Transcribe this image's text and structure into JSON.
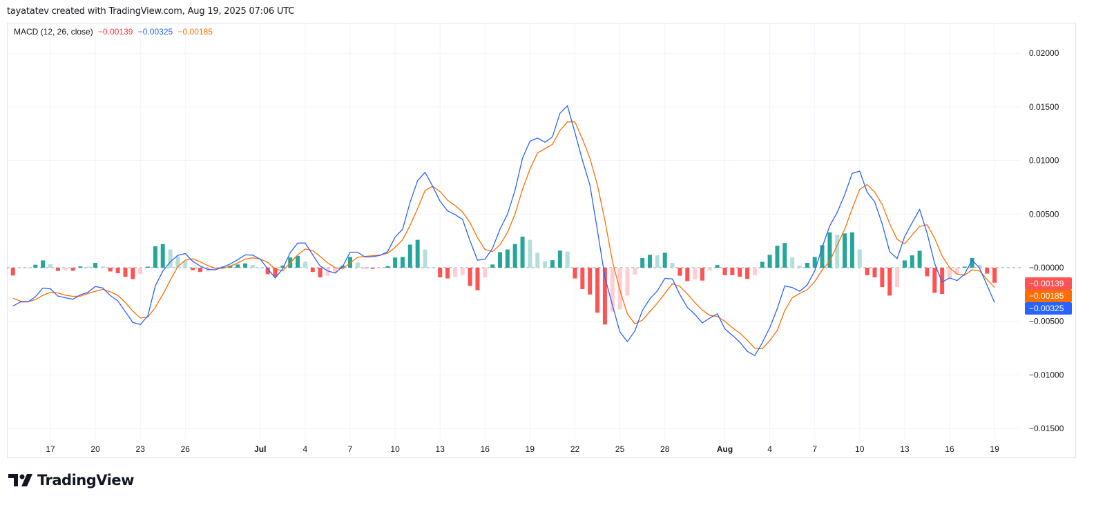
{
  "header": {
    "attribution": "tayatatev created with TradingView.com, Aug 19, 2025 07:06 UTC"
  },
  "legend": {
    "indicator": "MACD (12, 26, close)",
    "histogram_value": "−0.00139",
    "macd_value": "−0.00325",
    "signal_value": "−0.00185"
  },
  "colors": {
    "macd": "#2962FF",
    "signal": "#FF6D00",
    "histogram_value_text": "#F23645",
    "hist_pos_rising": "#26A69A",
    "hist_pos_falling": "#B2DFDB",
    "hist_neg_falling": "#FF5252",
    "hist_neg_rising": "#FFCDD2",
    "grid": "#F0F3FA",
    "border": "#E0E3EB"
  },
  "price_axis_badges": [
    {
      "label": "−0.00139",
      "value": -0.00139,
      "color": "#FF5252",
      "series": "histogram"
    },
    {
      "label": "−0.00185",
      "value": -0.00185,
      "color": "#FF6D00",
      "series": "signal"
    },
    {
      "label": "−0.00325",
      "value": -0.00325,
      "color": "#2962FF",
      "series": "macd"
    }
  ],
  "zero_label": "−0.00000",
  "logo": {
    "text": "TradingView"
  },
  "chart_data": {
    "type": "line",
    "title": "",
    "ylim": [
      -0.0165,
      0.0225
    ],
    "grid": true,
    "yticks": [
      {
        "label": "0.02000",
        "value": 0.02
      },
      {
        "label": "0.01500",
        "value": 0.015
      },
      {
        "label": "0.01000",
        "value": 0.01
      },
      {
        "label": "0.00500",
        "value": 0.005
      },
      {
        "label": "−0.00500",
        "value": -0.005
      },
      {
        "label": "−0.01000",
        "value": -0.01
      },
      {
        "label": "−0.01500",
        "value": -0.015
      }
    ],
    "xticks": [
      {
        "label": "17",
        "date": "Jun 17 00:00"
      },
      {
        "label": "20",
        "date": "Jun 20 00:00"
      },
      {
        "label": "23",
        "date": "Jun 23 00:00"
      },
      {
        "label": "26",
        "date": "Jun 26 00:00"
      },
      {
        "label": "Jul",
        "date": "Jul 1 00:00",
        "bold": true
      },
      {
        "label": "4",
        "date": "Jul 4 00:00"
      },
      {
        "label": "7",
        "date": "Jul 7 00:00"
      },
      {
        "label": "10",
        "date": "Jul 10 00:00"
      },
      {
        "label": "13",
        "date": "Jul 13 00:00"
      },
      {
        "label": "16",
        "date": "Jul 16 00:00"
      },
      {
        "label": "19",
        "date": "Jul 19 00:00"
      },
      {
        "label": "22",
        "date": "Jul 22 00:00"
      },
      {
        "label": "25",
        "date": "Jul 25 00:00"
      },
      {
        "label": "28",
        "date": "Jul 28 00:00"
      },
      {
        "label": "Aug",
        "date": "Aug 1 00:00",
        "bold": true
      },
      {
        "label": "4",
        "date": "Aug 4 00:00"
      },
      {
        "label": "7",
        "date": "Aug 7 00:00"
      },
      {
        "label": "10",
        "date": "Aug 10 00:00"
      },
      {
        "label": "13",
        "date": "Aug 13 00:00"
      },
      {
        "label": "16",
        "date": "Aug 16 00:00"
      },
      {
        "label": "19",
        "date": "Aug 19 00:00"
      }
    ],
    "x": [
      "Jun 14 12:00",
      "Jun 15 00:00",
      "Jun 15 12:00",
      "Jun 16 00:00",
      "Jun 16 12:00",
      "Jun 17 00:00",
      "Jun 17 12:00",
      "Jun 18 00:00",
      "Jun 18 12:00",
      "Jun 19 00:00",
      "Jun 19 12:00",
      "Jun 20 00:00",
      "Jun 20 12:00",
      "Jun 21 00:00",
      "Jun 21 12:00",
      "Jun 22 00:00",
      "Jun 22 12:00",
      "Jun 23 00:00",
      "Jun 23 12:00",
      "Jun 24 00:00",
      "Jun 24 12:00",
      "Jun 25 00:00",
      "Jun 25 12:00",
      "Jun 26 00:00",
      "Jun 26 12:00",
      "Jun 27 00:00",
      "Jun 27 12:00",
      "Jun 28 00:00",
      "Jun 28 12:00",
      "Jun 29 00:00",
      "Jun 29 12:00",
      "Jun 30 00:00",
      "Jun 30 12:00",
      "Jul 1 00:00",
      "Jul 1 12:00",
      "Jul 2 00:00",
      "Jul 2 12:00",
      "Jul 3 00:00",
      "Jul 3 12:00",
      "Jul 4 00:00",
      "Jul 4 12:00",
      "Jul 5 00:00",
      "Jul 5 12:00",
      "Jul 6 00:00",
      "Jul 6 12:00",
      "Jul 7 00:00",
      "Jul 7 12:00",
      "Jul 8 00:00",
      "Jul 8 12:00",
      "Jul 9 00:00",
      "Jul 9 12:00",
      "Jul 10 00:00",
      "Jul 10 12:00",
      "Jul 11 00:00",
      "Jul 11 12:00",
      "Jul 12 00:00",
      "Jul 12 12:00",
      "Jul 13 00:00",
      "Jul 13 12:00",
      "Jul 14 00:00",
      "Jul 14 12:00",
      "Jul 15 00:00",
      "Jul 15 12:00",
      "Jul 16 00:00",
      "Jul 16 12:00",
      "Jul 17 00:00",
      "Jul 17 12:00",
      "Jul 18 00:00",
      "Jul 18 12:00",
      "Jul 19 00:00",
      "Jul 19 12:00",
      "Jul 20 00:00",
      "Jul 20 12:00",
      "Jul 21 00:00",
      "Jul 21 12:00",
      "Jul 22 00:00",
      "Jul 22 12:00",
      "Jul 23 00:00",
      "Jul 23 12:00",
      "Jul 24 00:00",
      "Jul 24 12:00",
      "Jul 25 00:00",
      "Jul 25 12:00",
      "Jul 26 00:00",
      "Jul 26 12:00",
      "Jul 27 00:00",
      "Jul 27 12:00",
      "Jul 28 00:00",
      "Jul 28 12:00",
      "Jul 29 00:00",
      "Jul 29 12:00",
      "Jul 30 00:00",
      "Jul 30 12:00",
      "Jul 31 00:00",
      "Jul 31 12:00",
      "Aug 1 00:00",
      "Aug 1 12:00",
      "Aug 2 00:00",
      "Aug 2 12:00",
      "Aug 3 00:00",
      "Aug 3 12:00",
      "Aug 4 00:00",
      "Aug 4 12:00",
      "Aug 5 00:00",
      "Aug 5 12:00",
      "Aug 6 00:00",
      "Aug 6 12:00",
      "Aug 7 00:00",
      "Aug 7 12:00",
      "Aug 8 00:00",
      "Aug 8 12:00",
      "Aug 9 00:00",
      "Aug 9 12:00",
      "Aug 10 00:00",
      "Aug 10 12:00",
      "Aug 11 00:00",
      "Aug 11 12:00",
      "Aug 12 00:00",
      "Aug 12 12:00",
      "Aug 13 00:00",
      "Aug 13 12:00",
      "Aug 14 00:00",
      "Aug 14 12:00",
      "Aug 15 00:00",
      "Aug 15 12:00",
      "Aug 16 00:00",
      "Aug 16 12:00",
      "Aug 17 00:00",
      "Aug 17 12:00",
      "Aug 18 00:00",
      "Aug 18 12:00",
      "Aug 19 00:00"
    ],
    "series": [
      {
        "name": "MACD",
        "key": "macd",
        "values": [
          -0.00358,
          -0.00319,
          -0.00319,
          -0.0027,
          -0.0019,
          -0.00197,
          -0.00265,
          -0.0028,
          -0.00295,
          -0.00253,
          -0.0023,
          -0.00175,
          -0.0019,
          -0.0026,
          -0.0031,
          -0.0041,
          -0.0051,
          -0.0053,
          -0.0045,
          -0.0017,
          -0.0003,
          0.00055,
          0.00115,
          0.00132,
          0.0006,
          0.00015,
          -0.00015,
          -0.0002,
          5e-05,
          0.00035,
          0.00075,
          0.0012,
          0.00117,
          0.0008,
          -0.0001,
          -0.00095,
          -0.0001,
          0.0014,
          0.0023,
          0.0023,
          0.0012,
          0.00015,
          -0.0003,
          -0.0005,
          0.0001,
          0.00145,
          0.00145,
          0.001,
          0.00102,
          0.00115,
          0.0015,
          0.00285,
          0.0036,
          0.0061,
          0.0081,
          0.0089,
          0.0076,
          0.0062,
          0.0053,
          0.00495,
          0.0045,
          0.0025,
          0.0007,
          0.0008,
          0.0018,
          0.0036,
          0.005,
          0.0072,
          0.0102,
          0.0118,
          0.0121,
          0.0117,
          0.0122,
          0.0144,
          0.0151,
          0.0126,
          0.01,
          0.0077,
          0.0035,
          -0.0009,
          -0.0035,
          -0.006,
          -0.0069,
          -0.0059,
          -0.004,
          -0.0029,
          -0.00215,
          -0.001,
          -0.00105,
          -0.0025,
          -0.0037,
          -0.00435,
          -0.00515,
          -0.0047,
          -0.0043,
          -0.0057,
          -0.0063,
          -0.00695,
          -0.0078,
          -0.0082,
          -0.007,
          -0.0056,
          -0.0038,
          -0.0017,
          -0.00185,
          -0.0022,
          -0.0016,
          -0.0003,
          0.0019,
          0.0039,
          0.00517,
          0.0068,
          0.0088,
          0.009,
          0.00705,
          0.00615,
          0.0041,
          0.0015,
          0.00085,
          0.0029,
          0.0042,
          0.00543,
          0.0032,
          0.0004,
          -0.00135,
          -0.00095,
          -0.0012,
          -0.0006,
          0.00071,
          -4e-05,
          -0.00165,
          -0.00325
        ]
      },
      {
        "name": "Signal",
        "key": "signal",
        "values": [
          -0.00285,
          -0.00312,
          -0.00317,
          -0.00298,
          -0.00258,
          -0.0023,
          -0.00235,
          -0.00257,
          -0.00267,
          -0.00265,
          -0.0024,
          -0.0022,
          -0.00202,
          -0.00225,
          -0.00258,
          -0.00325,
          -0.00405,
          -0.0047,
          -0.0046,
          -0.0037,
          -0.0025,
          -0.00115,
          0.0001,
          0.0007,
          0.00083,
          0.00055,
          0.0002,
          -5e-05,
          -5e-05,
          0.00015,
          0.00045,
          0.0008,
          0.00092,
          0.0008,
          0.0005,
          -0.00012,
          -0.0003,
          0.00045,
          0.0012,
          0.00175,
          0.0016,
          0.00105,
          0.00045,
          0.0,
          -0.0001,
          0.00045,
          0.00097,
          0.00105,
          0.00112,
          0.00118,
          0.00135,
          0.0019,
          0.0026,
          0.00395,
          0.0055,
          0.0072,
          0.0076,
          0.0071,
          0.0063,
          0.0058,
          0.0052,
          0.0042,
          0.0028,
          0.0017,
          0.0015,
          0.00215,
          0.0033,
          0.005,
          0.0073,
          0.0092,
          0.0107,
          0.0111,
          0.0115,
          0.0128,
          0.0136,
          0.0136,
          0.012,
          0.0102,
          0.0077,
          0.0044,
          0.0006,
          -0.0021,
          -0.0043,
          -0.00525,
          -0.0049,
          -0.0041,
          -0.0033,
          -0.0024,
          -0.0015,
          -0.00175,
          -0.00245,
          -0.00325,
          -0.00395,
          -0.00445,
          -0.00455,
          -0.005,
          -0.0056,
          -0.0061,
          -0.00675,
          -0.0075,
          -0.00755,
          -0.0068,
          -0.00585,
          -0.004,
          -0.0028,
          -0.0024,
          -0.00205,
          -0.0013,
          -0.0002,
          0.0006,
          0.0021,
          0.0036,
          0.0055,
          0.0073,
          0.00775,
          0.00705,
          0.0059,
          0.0041,
          0.00265,
          0.00222,
          0.00305,
          0.00385,
          0.004,
          0.00275,
          0.0011,
          0.0,
          -0.0006,
          -0.0007,
          -0.0002,
          -0.0003,
          -0.0011,
          -0.00185
        ]
      },
      {
        "name": "Histogram",
        "key": "histogram",
        "derived": "macd - signal"
      }
    ]
  }
}
